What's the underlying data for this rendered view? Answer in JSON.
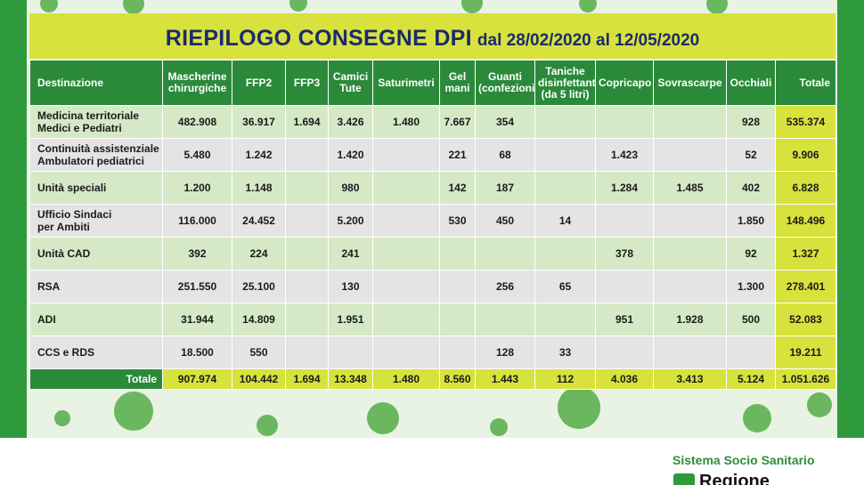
{
  "header": {
    "title": "RIEPILOGO CONSEGNE DPI",
    "period": "dal 28/02/2020 al 12/05/2020"
  },
  "table": {
    "columns": [
      [
        "Destinazione"
      ],
      [
        "Mascherine",
        "chirurgiche"
      ],
      [
        "FFP2"
      ],
      [
        "FFP3"
      ],
      [
        "Camici",
        "Tute"
      ],
      [
        "Saturimetri"
      ],
      [
        "Gel",
        "mani"
      ],
      [
        "Guanti",
        "(confezioni)"
      ],
      [
        "Taniche",
        "disinfettante",
        "(da 5 litri)"
      ],
      [
        "Copricapo"
      ],
      [
        "Sovrascarpe"
      ],
      [
        "Occhiali"
      ],
      [
        "Totale"
      ]
    ],
    "rows": [
      {
        "destination": [
          "Medicina territoriale",
          "Medici e Pediatri"
        ],
        "cells": [
          "482.908",
          "36.917",
          "1.694",
          "3.426",
          "1.480",
          "7.667",
          "354",
          null,
          null,
          null,
          "928",
          "535.374"
        ]
      },
      {
        "destination": [
          "Continuità assistenziale",
          "Ambulatori pediatrici"
        ],
        "cells": [
          "5.480",
          "1.242",
          null,
          "1.420",
          null,
          "221",
          "68",
          null,
          "1.423",
          null,
          "52",
          "9.906"
        ]
      },
      {
        "destination": [
          "Unità speciali"
        ],
        "cells": [
          "1.200",
          "1.148",
          null,
          "980",
          null,
          "142",
          "187",
          null,
          "1.284",
          "1.485",
          "402",
          "6.828"
        ]
      },
      {
        "destination": [
          "Ufficio Sindaci",
          "per Ambiti"
        ],
        "cells": [
          "116.000",
          "24.452",
          null,
          "5.200",
          null,
          "530",
          "450",
          "14",
          null,
          null,
          "1.850",
          "148.496"
        ]
      },
      {
        "destination": [
          "Unità CAD"
        ],
        "cells": [
          "392",
          "224",
          null,
          "241",
          null,
          null,
          null,
          null,
          "378",
          null,
          "92",
          "1.327"
        ]
      },
      {
        "destination": [
          "RSA"
        ],
        "cells": [
          "251.550",
          "25.100",
          null,
          "130",
          null,
          null,
          "256",
          "65",
          null,
          null,
          "1.300",
          "278.401"
        ]
      },
      {
        "destination": [
          "ADI"
        ],
        "cells": [
          "31.944",
          "14.809",
          null,
          "1.951",
          null,
          null,
          null,
          null,
          "951",
          "1.928",
          "500",
          "52.083"
        ]
      },
      {
        "destination": [
          "CCS e RDS"
        ],
        "cells": [
          "18.500",
          "550",
          null,
          null,
          null,
          null,
          "128",
          "33",
          null,
          null,
          null,
          "19.211"
        ]
      }
    ],
    "totals": {
      "label": "Totale",
      "cells": [
        "907.974",
        "104.442",
        "1.694",
        "13.348",
        "1.480",
        "8.560",
        "1.443",
        "112",
        "4.036",
        "3.413",
        "5.124",
        "1.051.626"
      ]
    }
  },
  "footer": {
    "system": "Sistema Socio Sanitario",
    "region": "Regione"
  }
}
